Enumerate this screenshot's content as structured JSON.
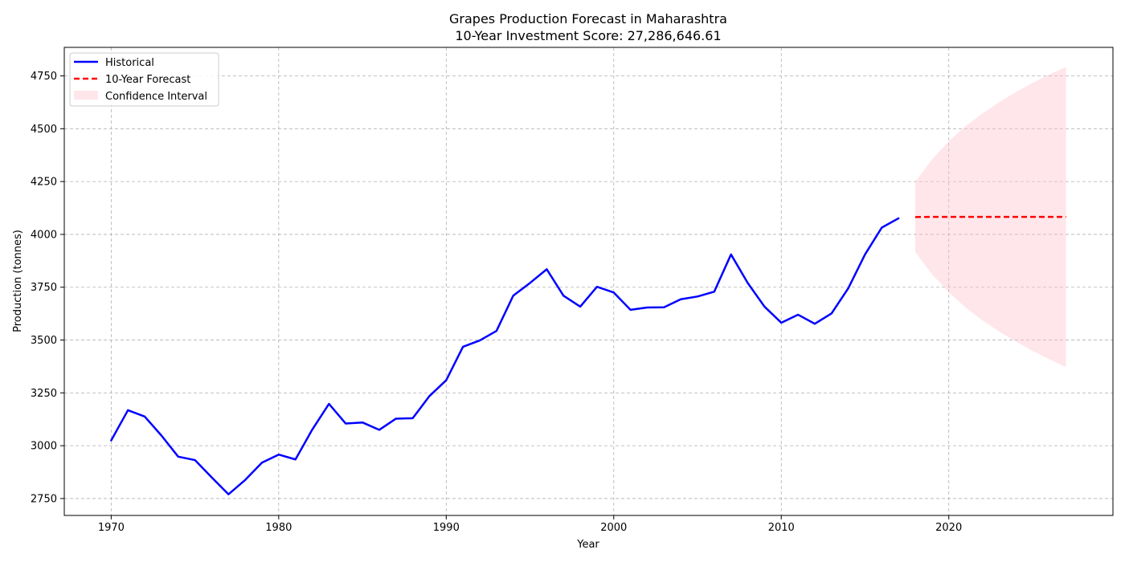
{
  "chart_data": {
    "type": "line",
    "title": "Grapes Production Forecast in Maharashtra",
    "subtitle": "10-Year Investment Score: 27,286,646.61",
    "xlabel": "Year",
    "ylabel": "Production (tonnes)",
    "xlim": [
      1967.2,
      2029.8
    ],
    "ylim": [
      2670,
      4885
    ],
    "x_ticks": [
      1970,
      1980,
      1990,
      2000,
      2010,
      2020
    ],
    "y_ticks": [
      2750,
      3000,
      3250,
      3500,
      3750,
      4000,
      4250,
      4500,
      4750
    ],
    "grid": true,
    "legend_position": "top-left",
    "legend": [
      "Historical",
      "10-Year Forecast",
      "Confidence Interval"
    ],
    "series": [
      {
        "name": "Historical",
        "color": "#0000ff",
        "style": "solid",
        "x": [
          1970,
          1971,
          1972,
          1973,
          1974,
          1975,
          1976,
          1977,
          1978,
          1979,
          1980,
          1981,
          1982,
          1983,
          1984,
          1985,
          1986,
          1987,
          1988,
          1989,
          1990,
          1991,
          1992,
          1993,
          1994,
          1995,
          1996,
          1997,
          1998,
          1999,
          2000,
          2001,
          2002,
          2003,
          2004,
          2005,
          2006,
          2007,
          2008,
          2009,
          2010,
          2011,
          2012,
          2013,
          2014,
          2015,
          2016,
          2017
        ],
        "values": [
          3025,
          3168,
          3138,
          3048,
          2948,
          2932,
          2850,
          2770,
          2838,
          2920,
          2958,
          2935,
          3076,
          3198,
          3105,
          3110,
          3075,
          3128,
          3130,
          3235,
          3310,
          3468,
          3498,
          3543,
          3710,
          3770,
          3835,
          3710,
          3658,
          3752,
          3725,
          3643,
          3654,
          3655,
          3693,
          3706,
          3729,
          3905,
          3770,
          3658,
          3582,
          3620,
          3577,
          3626,
          3745,
          3905,
          4032,
          4076
        ]
      },
      {
        "name": "10-Year Forecast",
        "color": "#ff0000",
        "style": "dashed",
        "x": [
          2018,
          2019,
          2020,
          2021,
          2022,
          2023,
          2024,
          2025,
          2026,
          2027
        ],
        "values": [
          4082,
          4083,
          4083,
          4083,
          4083,
          4083,
          4083,
          4083,
          4083,
          4083
        ]
      }
    ],
    "confidence_interval": {
      "name": "Confidence Interval",
      "color": "#ffc0cb",
      "x": [
        2018,
        2019,
        2020,
        2021,
        2022,
        2023,
        2024,
        2025,
        2026,
        2027
      ],
      "upper": [
        4248,
        4355,
        4440,
        4512,
        4572,
        4625,
        4673,
        4717,
        4757,
        4793
      ],
      "lower": [
        3916,
        3811,
        3726,
        3654,
        3593,
        3541,
        3493,
        3449,
        3409,
        3372
      ]
    }
  }
}
